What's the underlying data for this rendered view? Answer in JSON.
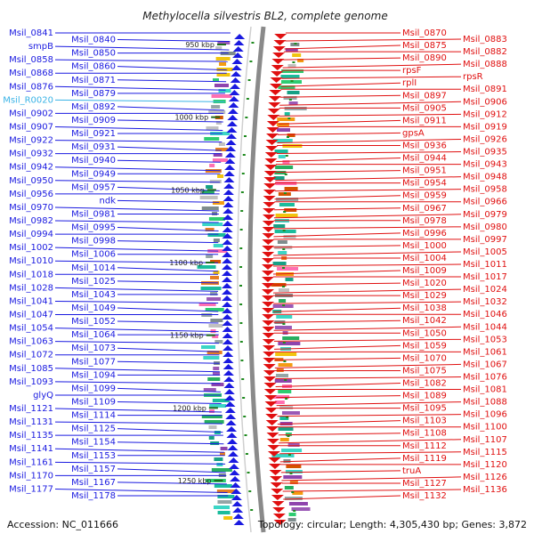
{
  "title": "Methylocella silvestris BL2, complete genome",
  "footer": {
    "accession": "Accession: NC_011666",
    "topology": "Topology: circular; Length: 4,305,430 bp; Genes: 3,872"
  },
  "kbp_ticks": [
    "950 kbp",
    "1000 kbp",
    "1050 kbp",
    "1100 kbp",
    "1150 kbp",
    "1200 kbp",
    "1250 kbp"
  ],
  "left_genes": [
    "Msil_0841",
    "Msil_0840",
    "smpB",
    "Msil_0850",
    "Msil_0858",
    "Msil_0860",
    "Msil_0868",
    "Msil_0871",
    "Msil_0876",
    "Msil_0879",
    "Msil_R0020",
    "Msil_0892",
    "Msil_0902",
    "Msil_0909",
    "Msil_0907",
    "Msil_0921",
    "Msil_0922",
    "Msil_0931",
    "Msil_0932",
    "Msil_0940",
    "Msil_0942",
    "Msil_0949",
    "Msil_0950",
    "Msil_0957",
    "Msil_0956",
    "ndk",
    "Msil_0970",
    "Msil_0981",
    "Msil_0982",
    "Msil_0995",
    "Msil_0994",
    "Msil_0998",
    "Msil_1002",
    "Msil_1006",
    "Msil_1010",
    "Msil_1014",
    "Msil_1018",
    "Msil_1025",
    "Msil_1028",
    "Msil_1043",
    "Msil_1041",
    "Msil_1049",
    "Msil_1047",
    "Msil_1052",
    "Msil_1054",
    "Msil_1064",
    "Msil_1063",
    "Msil_1073",
    "Msil_1072",
    "Msil_1077",
    "Msil_1085",
    "Msil_1094",
    "Msil_1093",
    "Msil_1099",
    "glyQ",
    "Msil_1109",
    "Msil_1121",
    "Msil_1114",
    "Msil_1131",
    "Msil_1125",
    "Msil_1135",
    "Msil_1154",
    "Msil_1141",
    "Msil_1153",
    "Msil_1161",
    "Msil_1157",
    "Msil_1170",
    "Msil_1167",
    "Msil_1177",
    "Msil_1178"
  ],
  "right_genes": [
    "Msil_0870",
    "Msil_0883",
    "Msil_0875",
    "Msil_0882",
    "Msil_0890",
    "Msil_0888",
    "rpsF",
    "rpsR",
    "rplI",
    "Msil_0891",
    "Msil_0897",
    "Msil_0906",
    "Msil_0905",
    "Msil_0912",
    "Msil_0911",
    "Msil_0919",
    "gpsA",
    "Msil_0926",
    "Msil_0936",
    "Msil_0935",
    "Msil_0944",
    "Msil_0943",
    "Msil_0951",
    "Msil_0948",
    "Msil_0954",
    "Msil_0958",
    "Msil_0959",
    "Msil_0966",
    "Msil_0967",
    "Msil_0979",
    "Msil_0978",
    "Msil_0980",
    "Msil_0996",
    "Msil_0997",
    "Msil_1000",
    "Msil_1005",
    "Msil_1004",
    "Msil_1011",
    "Msil_1009",
    "Msil_1017",
    "Msil_1020",
    "Msil_1024",
    "Msil_1029",
    "Msil_1032",
    "Msil_1038",
    "Msil_1046",
    "Msil_1042",
    "Msil_1044",
    "Msil_1050",
    "Msil_1053",
    "Msil_1059",
    "Msil_1061",
    "Msil_1070",
    "Msil_1067",
    "Msil_1075",
    "Msil_1076",
    "Msil_1082",
    "Msil_1081",
    "Msil_1089",
    "Msil_1088",
    "Msil_1095",
    "Msil_1096",
    "Msil_1103",
    "Msil_1100",
    "Msil_1108",
    "Msil_1107",
    "Msil_1112",
    "Msil_1115",
    "Msil_1119",
    "Msil_1120",
    "truA",
    "Msil_1126",
    "Msil_1127",
    "Msil_1136",
    "Msil_1132"
  ],
  "colors": {
    "forward_strand": "#1a1ae0",
    "reverse_strand": "#e01010",
    "rna_gene": "#39b3e6",
    "backbone": "#8a8a8a",
    "tick_marker": "#1f8a1f"
  }
}
